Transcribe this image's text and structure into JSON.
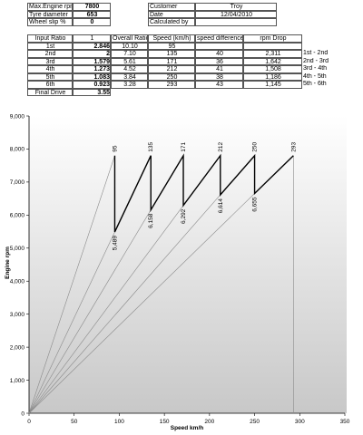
{
  "info_left": [
    [
      "Max.Engine rpm",
      "7800"
    ],
    [
      "Tyre diameter",
      "653"
    ],
    [
      "Wheel slip %",
      "0"
    ]
  ],
  "info_right": [
    [
      "Customer",
      "Troy"
    ],
    [
      "Date",
      "12/04/2010"
    ],
    [
      "Calculated by"
    ]
  ],
  "ratio_table": {
    "header": [
      "Input Ratio",
      "1",
      "Overall Ratio",
      "Speed (km/h)",
      "speed difference",
      "rpm Drop"
    ],
    "rows": [
      [
        "1st",
        "2.846",
        "10.10",
        "95"
      ],
      [
        "2nd",
        "2",
        "7.10",
        "135",
        "40",
        "2,311",
        "1st - 2nd"
      ],
      [
        "3rd",
        "1.579",
        "5.61",
        "171",
        "36",
        "1,642",
        "2nd - 3rd"
      ],
      [
        "4th",
        "1.273",
        "4.52",
        "212",
        "41",
        "1,508",
        "3rd - 4th"
      ],
      [
        "5th",
        "1.083",
        "3.84",
        "250",
        "38",
        "1,186",
        "4th - 5th"
      ],
      [
        "6th",
        "0.923",
        "3.28",
        "293",
        "43",
        "1,145",
        "5th - 6th"
      ]
    ],
    "final_drive": [
      "Final Drive",
      "3.55"
    ]
  },
  "chart_data": {
    "type": "line",
    "x_label": "Speed km/h",
    "y_label": "Engine rpm",
    "x": [
      95,
      95,
      135,
      135,
      171,
      171,
      212,
      212,
      250,
      250,
      293
    ],
    "values": [
      7800,
      5489,
      7800,
      6158,
      7800,
      6292,
      7800,
      6614,
      7800,
      6655,
      7800
    ],
    "value_labels": [
      null,
      "5,489",
      null,
      "6,158",
      null,
      "6,292",
      null,
      "6,614",
      null,
      "6,655",
      null
    ],
    "color": "#000000",
    "ray_color": "#8a8a8a",
    "xlim": [
      0,
      350
    ],
    "xticks": [
      0,
      50,
      100,
      150,
      200,
      250,
      300,
      350
    ],
    "ylim": [
      0,
      9000
    ],
    "yticks": [
      0,
      {
        "value": 1000,
        "label": "1,000"
      },
      {
        "value": 2000,
        "label": "2,000"
      },
      {
        "value": 3000,
        "label": "3,000"
      },
      {
        "value": 4000,
        "label": "4,000"
      },
      {
        "value": 5000,
        "label": "5,000"
      },
      {
        "value": 6000,
        "label": "6,000"
      },
      {
        "value": 7000,
        "label": "7,000"
      },
      {
        "value": 8000,
        "label": "8,000"
      },
      {
        "value": 9000,
        "label": "9,000"
      }
    ]
  }
}
